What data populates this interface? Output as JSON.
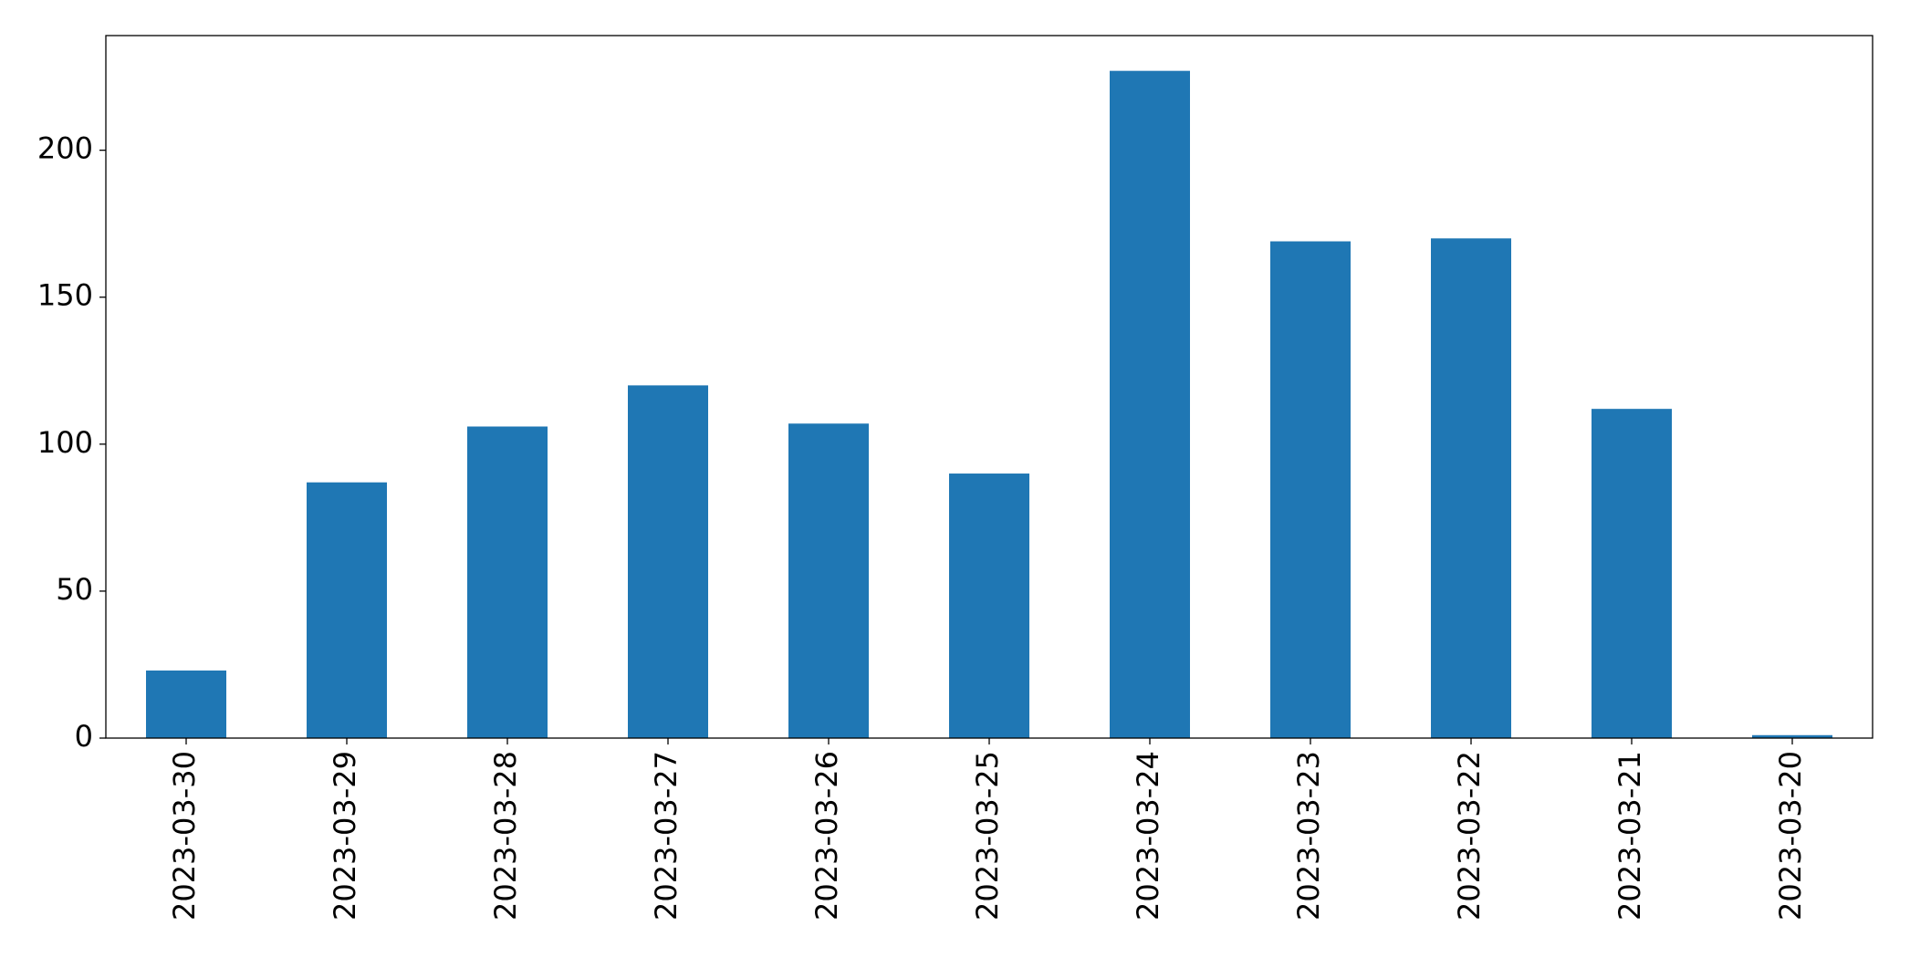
{
  "chart_data": {
    "type": "bar",
    "categories": [
      "2023-03-30",
      "2023-03-29",
      "2023-03-28",
      "2023-03-27",
      "2023-03-26",
      "2023-03-25",
      "2023-03-24",
      "2023-03-23",
      "2023-03-22",
      "2023-03-21",
      "2023-03-20"
    ],
    "values": [
      23,
      87,
      106,
      120,
      107,
      90,
      227,
      169,
      170,
      112,
      1
    ],
    "color": "#1f77b4",
    "ylim": [
      0,
      239
    ],
    "yticks": [
      0,
      50,
      100,
      150,
      200
    ],
    "grid": false
  }
}
